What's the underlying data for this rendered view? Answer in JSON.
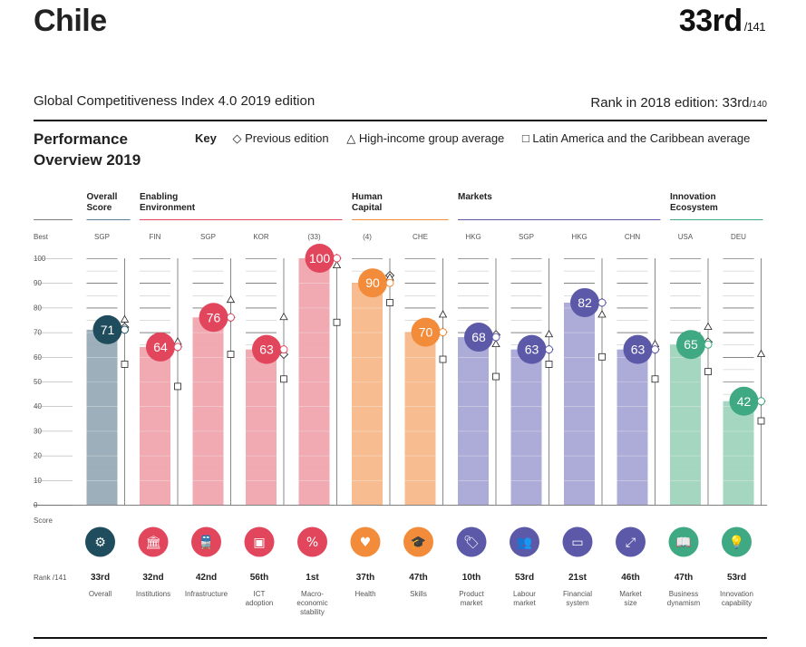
{
  "header": {
    "country": "Chile",
    "rank": "33rd",
    "rank_total": "/141",
    "index_title": "Global Competitiveness Index 4.0 2019 edition",
    "rank_2018_label": "Rank in 2018 edition: 33rd",
    "rank_2018_total": "/140"
  },
  "performance": {
    "title_line1": "Performance",
    "title_line2": "Overview 2019"
  },
  "key": {
    "label": "Key",
    "previous": "Previous edition",
    "high_income": "High-income group average",
    "latam": "Latin America and the Caribbean average"
  },
  "axis": {
    "best_label": "Best",
    "score_label": "Score",
    "rank_label": "Rank /141",
    "ticks": [
      "100",
      "90",
      "80",
      "70",
      "60",
      "50",
      "40",
      "30",
      "20",
      "10",
      "0"
    ]
  },
  "groups": [
    {
      "line1": "Overall",
      "line2": "Score",
      "color": "#5e7f93",
      "start": 0,
      "end": 0
    },
    {
      "line1": "Enabling",
      "line2": "Environment",
      "color": "#e2465d",
      "start": 1,
      "end": 4
    },
    {
      "line1": "Human",
      "line2": "Capital",
      "color": "#f28c3b",
      "start": 5,
      "end": 6
    },
    {
      "line1": "Markets",
      "line2": "",
      "color": "#5c5aa8",
      "start": 7,
      "end": 10
    },
    {
      "line1": "Innovation",
      "line2": "Ecosystem",
      "color": "#3ea982",
      "start": 11,
      "end": 12
    }
  ],
  "chart_data": {
    "type": "bar",
    "ylim": [
      0,
      100
    ],
    "categories": [
      "Overall",
      "Institutions",
      "Infrastructure",
      "ICT adoption",
      "Macro-economic stability",
      "Health",
      "Skills",
      "Product market",
      "Labour market",
      "Financial system",
      "Market size",
      "Business dynamism",
      "Innovation capability"
    ],
    "pillars": [
      {
        "name_lines": [
          "Overall"
        ],
        "best": "SGP",
        "score": 71,
        "score_label": "71",
        "rank": "33rd",
        "previous": 72,
        "high_income": 73,
        "latam": 57,
        "bar_color": "#97abb6",
        "circle_color": "#1f4d5d",
        "icon": "gear-icon",
        "icon_glyph": "⚙"
      },
      {
        "name_lines": [
          "Institutions"
        ],
        "best": "FIN",
        "score": 64,
        "score_label": "64",
        "rank": "32nd",
        "previous": 64,
        "high_income": 64,
        "latam": 48,
        "bar_color": "#f0a4ae",
        "circle_color": "#e2465d",
        "icon": "institution-icon",
        "icon_glyph": "🏛"
      },
      {
        "name_lines": [
          "Infrastructure"
        ],
        "best": "SGP",
        "score": 76,
        "score_label": "76",
        "rank": "42nd",
        "previous": 76,
        "high_income": 81,
        "latam": 61,
        "bar_color": "#f0a4ae",
        "circle_color": "#e2465d",
        "icon": "train-icon",
        "icon_glyph": "🚆"
      },
      {
        "name_lines": [
          "ICT",
          "adoption"
        ],
        "best": "KOR",
        "score": 63,
        "score_label": "63",
        "rank": "56th",
        "previous": 61,
        "high_income": 74,
        "latam": 51,
        "bar_color": "#f0a4ae",
        "circle_color": "#e2465d",
        "icon": "chip-icon",
        "icon_glyph": "▣"
      },
      {
        "name_lines": [
          "Macro-",
          "economic",
          "stability"
        ],
        "best": "(33)",
        "score": 100,
        "score_label": "100",
        "rank": "1st",
        "previous": 100,
        "high_income": 95,
        "latam": 74,
        "bar_color": "#f0a4ae",
        "circle_color": "#e2465d",
        "icon": "percent-icon",
        "icon_glyph": "%"
      },
      {
        "name_lines": [
          "Health"
        ],
        "best": "(4)",
        "score": 90,
        "score_label": "90",
        "rank": "37th",
        "previous": 93,
        "high_income": 90,
        "latam": 82,
        "bar_color": "#f7b98a",
        "circle_color": "#f28c3b",
        "icon": "heart-icon",
        "icon_glyph": "♥"
      },
      {
        "name_lines": [
          "Skills"
        ],
        "best": "CHE",
        "score": 70,
        "score_label": "70",
        "rank": "47th",
        "previous": 70,
        "high_income": 75,
        "latam": 59,
        "bar_color": "#f7b98a",
        "circle_color": "#f28c3b",
        "icon": "graduate-icon",
        "icon_glyph": "🎓"
      },
      {
        "name_lines": [
          "Product",
          "market"
        ],
        "best": "HKG",
        "score": 68,
        "score_label": "68",
        "rank": "10th",
        "previous": 69,
        "high_income": 63,
        "latam": 52,
        "bar_color": "#a9a8d6",
        "circle_color": "#5c5aa8",
        "icon": "tag-icon",
        "icon_glyph": "🏷"
      },
      {
        "name_lines": [
          "Labour",
          "market"
        ],
        "best": "SGP",
        "score": 63,
        "score_label": "63",
        "rank": "53rd",
        "previous": 63,
        "high_income": 67,
        "latam": 57,
        "bar_color": "#a9a8d6",
        "circle_color": "#5c5aa8",
        "icon": "people-icon",
        "icon_glyph": "👥"
      },
      {
        "name_lines": [
          "Financial",
          "system"
        ],
        "best": "HKG",
        "score": 82,
        "score_label": "82",
        "rank": "21st",
        "previous": 82,
        "high_income": 75,
        "latam": 60,
        "bar_color": "#a9a8d6",
        "circle_color": "#5c5aa8",
        "icon": "card-icon",
        "icon_glyph": "▭"
      },
      {
        "name_lines": [
          "Market",
          "size"
        ],
        "best": "CHN",
        "score": 63,
        "score_label": "63",
        "rank": "46th",
        "previous": 63,
        "high_income": 63,
        "latam": 51,
        "bar_color": "#a9a8d6",
        "circle_color": "#5c5aa8",
        "icon": "expand-icon",
        "icon_glyph": "⤢"
      },
      {
        "name_lines": [
          "Business",
          "dynamism"
        ],
        "best": "USA",
        "score": 65,
        "score_label": "65",
        "rank": "47th",
        "previous": 66,
        "high_income": 70,
        "latam": 54,
        "bar_color": "#9fd4bd",
        "circle_color": "#3ea982",
        "icon": "book-icon",
        "icon_glyph": "📖"
      },
      {
        "name_lines": [
          "Innovation",
          "capability"
        ],
        "best": "DEU",
        "score": 42,
        "score_label": "42",
        "rank": "53rd",
        "previous": 42,
        "high_income": 59,
        "latam": 34,
        "bar_color": "#9fd4bd",
        "circle_color": "#3ea982",
        "icon": "bulb-icon",
        "icon_glyph": "💡"
      }
    ]
  }
}
